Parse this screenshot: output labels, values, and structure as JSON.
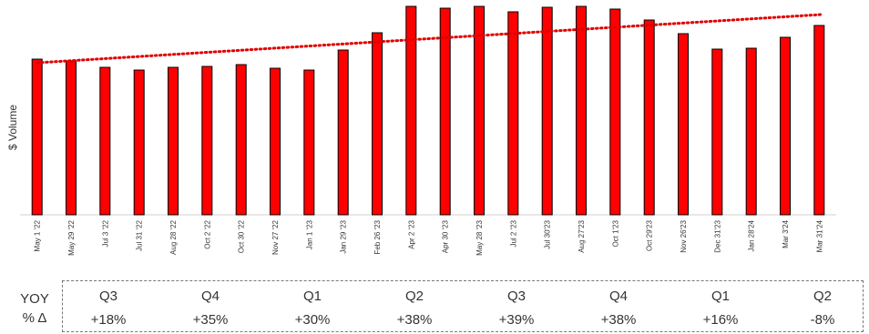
{
  "chart_data": {
    "type": "bar",
    "title": "",
    "xlabel": "",
    "ylabel": "$ Volume",
    "categories": [
      "May 1 '22",
      "May 29 '22",
      "Jul 3 '22",
      "Jul 31 '22",
      "Aug 28 '22",
      "Oct 2 '22",
      "Oct 30 '22",
      "Nov 27 '22",
      "Jan 1 '23",
      "Jan 29 '23",
      "Feb 26 '23",
      "Apr 2 '23",
      "Apr 30 '23",
      "May 28 '23",
      "Jul 2 '23",
      "Jul 30'23",
      "Aug 27'23",
      "Oct 1'23",
      "Oct 29'23",
      "Nov 26'23",
      "Dec 31'23",
      "Jan 28'24",
      "Mar 3'24",
      "Mar 31'24"
    ],
    "values": [
      171,
      169,
      162,
      159,
      162,
      163,
      165,
      161,
      159,
      181,
      200,
      229,
      227,
      229,
      223,
      228,
      229,
      226,
      214,
      199,
      182,
      183,
      195,
      208
    ],
    "ylim": [
      0,
      230
    ],
    "y_tick_labels": false,
    "grid": false,
    "bar_color": "#ff0000",
    "bar_outline_color": "#000000",
    "trendline": {
      "style": "dotted",
      "color": "#e00000",
      "start_value": 167,
      "end_value": 220
    }
  },
  "yoy": {
    "label_line1": "YOY",
    "label_line2": "% Δ",
    "quarters": [
      {
        "q": "Q3",
        "v": "+18%"
      },
      {
        "q": "Q4",
        "v": "+35%"
      },
      {
        "q": "Q1",
        "v": "+30%"
      },
      {
        "q": "Q2",
        "v": "+38%"
      },
      {
        "q": "Q3",
        "v": "+39%"
      },
      {
        "q": "Q4",
        "v": "+38%"
      },
      {
        "q": "Q1",
        "v": "+16%"
      },
      {
        "q": "Q2",
        "v": "-8%"
      }
    ]
  }
}
